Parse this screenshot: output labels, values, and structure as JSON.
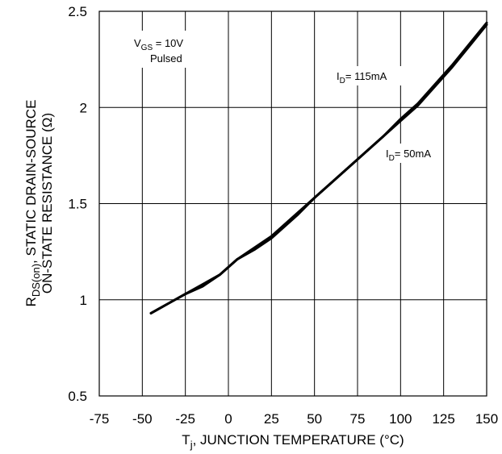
{
  "chart_data": {
    "type": "line",
    "title": "",
    "xlabel": {
      "main": "T",
      "sub": "j",
      "rest": ", JUNCTION TEMPERATURE (°C)"
    },
    "ylabel": {
      "line1_main": "R",
      "line1_sub": "DS(on)",
      "line1_rest": ", STATIC DRAIN-SOURCE",
      "line2": "ON-STATE RESISTANCE (Ω)"
    },
    "xlim": [
      -75,
      150
    ],
    "ylim": [
      0.5,
      2.5
    ],
    "x_ticks": [
      "-75",
      "-50",
      "-25",
      "0",
      "25",
      "50",
      "75",
      "100",
      "125",
      "150"
    ],
    "y_ticks": [
      "0.5",
      "1",
      "1.5",
      "2",
      "2.5"
    ],
    "grid": true,
    "series": [
      {
        "name": "I_D = 115mA",
        "x": [
          -45,
          -35,
          -25,
          -15,
          -5,
          5,
          15,
          25,
          40,
          50,
          60,
          75,
          90,
          100,
          110,
          120,
          130,
          140,
          150
        ],
        "values": [
          0.93,
          0.98,
          1.03,
          1.08,
          1.13,
          1.21,
          1.27,
          1.33,
          1.45,
          1.53,
          1.61,
          1.73,
          1.85,
          1.94,
          2.02,
          2.12,
          2.22,
          2.33,
          2.44
        ]
      },
      {
        "name": "I_D = 50mA",
        "x": [
          -45,
          -35,
          -25,
          -15,
          -5,
          5,
          15,
          25,
          40,
          50,
          60,
          75,
          90,
          100,
          110,
          120,
          130,
          140,
          150
        ],
        "values": [
          0.93,
          0.98,
          1.03,
          1.07,
          1.13,
          1.21,
          1.26,
          1.32,
          1.44,
          1.53,
          1.61,
          1.73,
          1.85,
          1.93,
          2.01,
          2.11,
          2.21,
          2.32,
          2.43
        ]
      }
    ],
    "annotations": {
      "vgs": {
        "main": "V",
        "sub": "GS",
        "rest": " = 10V"
      },
      "pulsed": "Pulsed",
      "id115": {
        "main": "I",
        "sub": "D",
        "rest": "= 115mA"
      },
      "id50": {
        "main": "I",
        "sub": "D",
        "rest": "= 50mA"
      }
    }
  }
}
